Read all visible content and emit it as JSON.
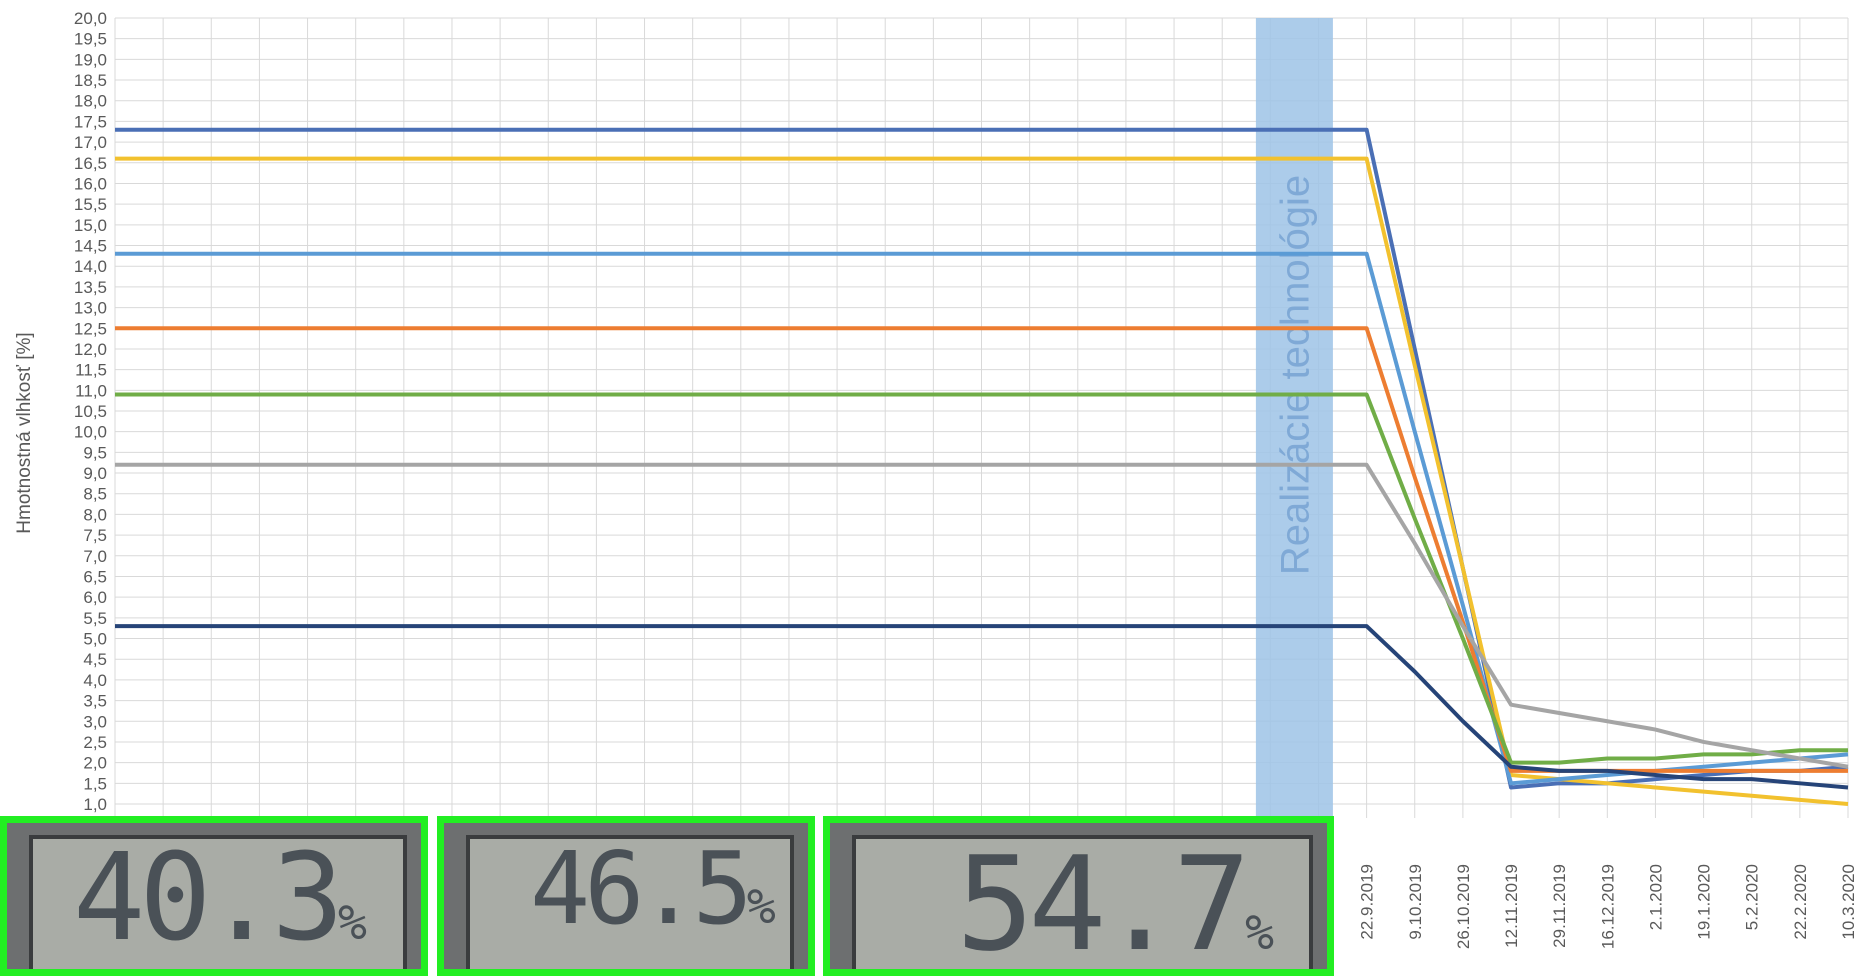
{
  "chart_data": {
    "type": "line",
    "y_label": "Hmotnostná vlhkosť [%]",
    "annotation": "Realizácie technológie",
    "categories": [
      null,
      null,
      null,
      null,
      null,
      null,
      null,
      null,
      null,
      null,
      null,
      null,
      null,
      null,
      null,
      null,
      null,
      null,
      null,
      null,
      null,
      null,
      null,
      null,
      null,
      null,
      "22.9.2019",
      "9.10.2019",
      "26.10.2019",
      "12.11.2019",
      "29.11.2019",
      "16.12.2019",
      "2.1.2020",
      "19.1.2020",
      "5.2.2020",
      "22.2.2020",
      "10.3.2020"
    ],
    "series": [
      {
        "color": "#4a6fb5",
        "values": [
          17.3,
          17.3,
          17.3,
          17.3,
          17.3,
          17.3,
          17.3,
          17.3,
          17.3,
          17.3,
          17.3,
          17.3,
          17.3,
          17.3,
          17.3,
          17.3,
          17.3,
          17.3,
          17.3,
          17.3,
          17.3,
          17.3,
          17.3,
          17.3,
          17.3,
          17.3,
          17.3,
          12.0,
          6.7,
          1.4,
          1.5,
          1.5,
          1.6,
          1.7,
          1.8,
          1.8,
          1.9
        ]
      },
      {
        "color": "#f2c12e",
        "values": [
          16.6,
          16.6,
          16.6,
          16.6,
          16.6,
          16.6,
          16.6,
          16.6,
          16.6,
          16.6,
          16.6,
          16.6,
          16.6,
          16.6,
          16.6,
          16.6,
          16.6,
          16.6,
          16.6,
          16.6,
          16.6,
          16.6,
          16.6,
          16.6,
          16.6,
          16.6,
          16.6,
          11.6,
          6.7,
          1.7,
          1.6,
          1.5,
          1.4,
          1.3,
          1.2,
          1.1,
          1.0
        ]
      },
      {
        "color": "#5b9bd5",
        "values": [
          14.3,
          14.3,
          14.3,
          14.3,
          14.3,
          14.3,
          14.3,
          14.3,
          14.3,
          14.3,
          14.3,
          14.3,
          14.3,
          14.3,
          14.3,
          14.3,
          14.3,
          14.3,
          14.3,
          14.3,
          14.3,
          14.3,
          14.3,
          14.3,
          14.3,
          14.3,
          14.3,
          10.0,
          5.8,
          1.5,
          1.6,
          1.7,
          1.8,
          1.9,
          2.0,
          2.1,
          2.2
        ]
      },
      {
        "color": "#ed7d31",
        "values": [
          12.5,
          12.5,
          12.5,
          12.5,
          12.5,
          12.5,
          12.5,
          12.5,
          12.5,
          12.5,
          12.5,
          12.5,
          12.5,
          12.5,
          12.5,
          12.5,
          12.5,
          12.5,
          12.5,
          12.5,
          12.5,
          12.5,
          12.5,
          12.5,
          12.5,
          12.5,
          12.5,
          8.9,
          5.4,
          1.8,
          1.8,
          1.8,
          1.8,
          1.8,
          1.8,
          1.8,
          1.8
        ]
      },
      {
        "color": "#70ad47",
        "values": [
          10.9,
          10.9,
          10.9,
          10.9,
          10.9,
          10.9,
          10.9,
          10.9,
          10.9,
          10.9,
          10.9,
          10.9,
          10.9,
          10.9,
          10.9,
          10.9,
          10.9,
          10.9,
          10.9,
          10.9,
          10.9,
          10.9,
          10.9,
          10.9,
          10.9,
          10.9,
          10.9,
          7.9,
          5.0,
          2.0,
          2.0,
          2.1,
          2.1,
          2.2,
          2.2,
          2.3,
          2.3
        ]
      },
      {
        "color": "#a5a5a5",
        "values": [
          9.2,
          9.2,
          9.2,
          9.2,
          9.2,
          9.2,
          9.2,
          9.2,
          9.2,
          9.2,
          9.2,
          9.2,
          9.2,
          9.2,
          9.2,
          9.2,
          9.2,
          9.2,
          9.2,
          9.2,
          9.2,
          9.2,
          9.2,
          9.2,
          9.2,
          9.2,
          9.2,
          7.3,
          5.3,
          3.4,
          3.2,
          3.0,
          2.8,
          2.5,
          2.3,
          2.1,
          1.9
        ]
      },
      {
        "color": "#264478",
        "values": [
          5.3,
          5.3,
          5.3,
          5.3,
          5.3,
          5.3,
          5.3,
          5.3,
          5.3,
          5.3,
          5.3,
          5.3,
          5.3,
          5.3,
          5.3,
          5.3,
          5.3,
          5.3,
          5.3,
          5.3,
          5.3,
          5.3,
          5.3,
          5.3,
          5.3,
          5.3,
          5.3,
          4.2,
          3.0,
          1.9,
          1.8,
          1.8,
          1.7,
          1.6,
          1.6,
          1.5,
          1.4
        ]
      }
    ],
    "ylim": [
      1,
      20
    ],
    "yticks": [
      {
        "value": 1,
        "label": "1,0"
      },
      {
        "value": 1.5,
        "label": "1,5"
      },
      {
        "value": 2,
        "label": "2,0"
      },
      {
        "value": 2.5,
        "label": "2,5"
      },
      {
        "value": 3,
        "label": "3,0"
      },
      {
        "value": 3.5,
        "label": "3,5"
      },
      {
        "value": 4,
        "label": "4,0"
      },
      {
        "value": 4.5,
        "label": "4,5"
      },
      {
        "value": 5,
        "label": "5,0"
      },
      {
        "value": 5.5,
        "label": "5,5"
      },
      {
        "value": 6,
        "label": "6,0"
      },
      {
        "value": 6.5,
        "label": "6,5"
      },
      {
        "value": 7,
        "label": "7,0"
      },
      {
        "value": 7.5,
        "label": "7,5"
      },
      {
        "value": 8,
        "label": "8,0"
      },
      {
        "value": 8.5,
        "label": "8,5"
      },
      {
        "value": 9,
        "label": "9,0"
      },
      {
        "value": 9.5,
        "label": "9,5"
      },
      {
        "value": 10,
        "label": "10,0"
      },
      {
        "value": 10.5,
        "label": "10,5"
      },
      {
        "value": 11,
        "label": "11,0"
      },
      {
        "value": 11.5,
        "label": "11,5"
      },
      {
        "value": 12,
        "label": "12,0"
      },
      {
        "value": 12.5,
        "label": "12,5"
      },
      {
        "value": 13,
        "label": "13,0"
      },
      {
        "value": 13.5,
        "label": "13,5"
      },
      {
        "value": 14,
        "label": "14,0"
      },
      {
        "value": 14.5,
        "label": "14,5"
      },
      {
        "value": 15,
        "label": "15,0"
      },
      {
        "value": 15.5,
        "label": "15,5"
      },
      {
        "value": 16,
        "label": "16,0"
      },
      {
        "value": 16.5,
        "label": "16,5"
      },
      {
        "value": 17,
        "label": "17,0"
      },
      {
        "value": 17.5,
        "label": "17,5"
      },
      {
        "value": 18,
        "label": "18,0"
      },
      {
        "value": 18.5,
        "label": "18,5"
      },
      {
        "value": 19,
        "label": "19,0"
      },
      {
        "value": 19.5,
        "label": "19,5"
      },
      {
        "value": 20,
        "label": "20,0"
      }
    ],
    "grid": true
  },
  "photos": [
    {
      "reading": "40.3",
      "unit": "%"
    },
    {
      "reading": "46.5",
      "unit": "%"
    },
    {
      "reading": "54.7",
      "unit": "%"
    }
  ]
}
